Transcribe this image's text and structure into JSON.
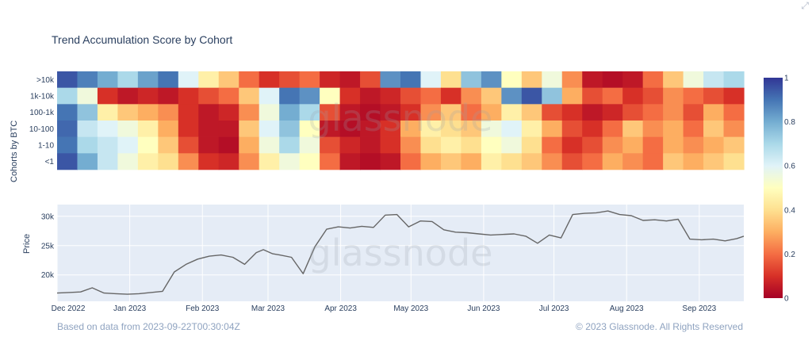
{
  "title": "Trend Accumulation Score by Cohort",
  "footer": {
    "source_note": "Based on data from 2023-09-22T00:30:04Z",
    "copyright": "© 2023 Glassnode. All Rights Reserved"
  },
  "watermark": "glassnode",
  "icons": {
    "expand": "expand-icon"
  },
  "chart_data": [
    {
      "type": "heatmap",
      "title": "Trend Accumulation Score by Cohort",
      "ylabel": "Cohorts by BTC",
      "rows": [
        ">10k",
        "1k-10k",
        "100-1k",
        "10-100",
        "1-10",
        "<1"
      ],
      "x_ticks": [
        "Dec 2022",
        "Jan 2023",
        "Feb 2023",
        "Mar 2023",
        "Apr 2023",
        "May 2023",
        "Jun 2023",
        "Jul 2023",
        "Aug 2023",
        "Sep 2023"
      ],
      "color_scale": {
        "min": 0,
        "max": 1,
        "ticks": [
          "0",
          "0.2",
          "0.4",
          "0.6",
          "0.8",
          "1"
        ],
        "colors": [
          "#a50026",
          "#d73027",
          "#f46d43",
          "#fdae61",
          "#fee090",
          "#ffffbf",
          "#e0f3f8",
          "#abd9e9",
          "#74add1",
          "#4575b4",
          "#313695"
        ]
      },
      "segments": [
        {
          "row": ">10k",
          "values": [
            [
              0.95,
              0.88,
              0.8,
              0.7,
              0.82,
              0.9,
              0.6,
              0.45,
              0.35,
              0.2,
              0.1,
              0.15,
              0.2,
              0.08,
              0.05,
              0.15,
              0.85,
              0.9,
              0.6,
              0.4,
              0.75,
              0.85,
              0.5,
              0.35,
              0.55,
              0.25,
              0.05,
              0.03,
              0.05,
              0.2,
              0.35,
              0.55,
              0.65,
              0.7
            ]
          ]
        },
        {
          "row": "1k-10k",
          "values": [
            [
              0.7,
              0.55,
              0.1,
              0.05,
              0.08,
              0.05,
              0.1,
              0.15,
              0.2,
              0.35,
              0.6,
              0.9,
              0.85,
              0.5,
              0.1,
              0.05,
              0.08,
              0.15,
              0.2,
              0.1,
              0.25,
              0.35,
              0.85,
              0.95,
              0.75,
              0.3,
              0.15,
              0.2,
              0.1,
              0.15,
              0.25,
              0.2,
              0.15,
              0.1
            ]
          ]
        },
        {
          "row": "100-1k",
          "values": [
            [
              0.9,
              0.75,
              0.45,
              0.35,
              0.3,
              0.25,
              0.1,
              0.05,
              0.08,
              0.25,
              0.55,
              0.8,
              0.7,
              0.15,
              0.05,
              0.03,
              0.05,
              0.1,
              0.25,
              0.35,
              0.2,
              0.3,
              0.45,
              0.35,
              0.15,
              0.1,
              0.05,
              0.08,
              0.15,
              0.2,
              0.25,
              0.15,
              0.3,
              0.2
            ]
          ]
        },
        {
          "row": "10-100",
          "values": [
            [
              0.92,
              0.65,
              0.6,
              0.55,
              0.45,
              0.3,
              0.1,
              0.05,
              0.05,
              0.35,
              0.6,
              0.75,
              0.5,
              0.05,
              0.03,
              0.05,
              0.1,
              0.3,
              0.45,
              0.4,
              0.35,
              0.55,
              0.6,
              0.45,
              0.3,
              0.15,
              0.1,
              0.2,
              0.35,
              0.25,
              0.3,
              0.2,
              0.35,
              0.25
            ]
          ]
        },
        {
          "row": "1-10",
          "values": [
            [
              0.9,
              0.7,
              0.65,
              0.6,
              0.5,
              0.35,
              0.15,
              0.05,
              0.03,
              0.3,
              0.55,
              0.7,
              0.55,
              0.15,
              0.08,
              0.05,
              0.1,
              0.25,
              0.4,
              0.45,
              0.4,
              0.5,
              0.55,
              0.4,
              0.2,
              0.1,
              0.15,
              0.25,
              0.3,
              0.2,
              0.3,
              0.25,
              0.3,
              0.35
            ]
          ]
        },
        {
          "row": "<1",
          "values": [
            [
              0.95,
              0.8,
              0.65,
              0.55,
              0.45,
              0.4,
              0.25,
              0.1,
              0.08,
              0.25,
              0.45,
              0.55,
              0.5,
              0.2,
              0.05,
              0.03,
              0.05,
              0.2,
              0.3,
              0.35,
              0.3,
              0.45,
              0.4,
              0.35,
              0.25,
              0.15,
              0.2,
              0.3,
              0.25,
              0.2,
              0.35,
              0.3,
              0.35,
              0.4
            ]
          ]
        }
      ]
    },
    {
      "type": "line",
      "ylabel": "Price",
      "y_ticks": [
        "20k",
        "25k",
        "30k"
      ],
      "ylim": [
        15500,
        32000
      ],
      "x_ticks": [
        "Dec 2022",
        "Jan 2023",
        "Feb 2023",
        "Mar 2023",
        "Apr 2023",
        "May 2023",
        "Jun 2023",
        "Jul 2023",
        "Aug 2023",
        "Sep 2023"
      ],
      "grid": true,
      "series": [
        {
          "x_day": [
            0,
            5,
            10,
            15,
            20,
            25,
            30,
            35,
            40,
            45,
            50,
            55,
            60,
            65,
            70,
            75,
            80,
            85,
            88,
            92,
            95,
            100,
            105,
            110,
            115,
            120,
            125,
            130,
            135,
            140,
            145,
            150,
            155,
            160,
            165,
            170,
            175,
            180,
            185,
            190,
            195,
            200,
            205,
            210,
            215,
            220,
            225,
            230,
            235,
            240,
            245,
            250,
            255,
            260,
            265,
            270,
            275,
            280,
            285,
            290,
            293
          ],
          "values": [
            16900,
            17000,
            17100,
            17800,
            16900,
            16800,
            16700,
            16800,
            17000,
            17200,
            20500,
            21800,
            22700,
            23200,
            23400,
            23000,
            21800,
            23800,
            24300,
            23600,
            23400,
            23000,
            20200,
            24800,
            27800,
            28200,
            28000,
            28300,
            28100,
            30200,
            30300,
            28200,
            29200,
            29100,
            27700,
            27300,
            27200,
            27000,
            26800,
            26900,
            27000,
            26600,
            25400,
            26800,
            26300,
            30300,
            30500,
            30600,
            30900,
            30300,
            30100,
            29300,
            29400,
            29200,
            29500,
            26100,
            26000,
            26100,
            25800,
            26200,
            26600
          ]
        }
      ]
    }
  ]
}
